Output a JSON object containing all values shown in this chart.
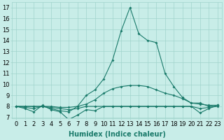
{
  "xlabel": "Humidex (Indice chaleur)",
  "ylabel": "",
  "background_color": "#c8ede8",
  "grid_color": "#a0d4cc",
  "line_color": "#1a7a6a",
  "x": [
    0,
    1,
    2,
    3,
    4,
    5,
    6,
    7,
    8,
    9,
    10,
    11,
    12,
    13,
    14,
    15,
    16,
    17,
    18,
    19,
    20,
    21,
    22,
    23
  ],
  "y_max": [
    8.0,
    7.9,
    7.8,
    8.0,
    7.8,
    7.6,
    7.5,
    8.0,
    9.0,
    9.5,
    10.5,
    12.2,
    14.9,
    17.0,
    14.6,
    14.0,
    13.8,
    11.0,
    9.8,
    8.8,
    8.3,
    8.3,
    8.0,
    8.1
  ],
  "y_upper": [
    8.0,
    8.0,
    8.0,
    8.0,
    8.0,
    7.9,
    7.9,
    8.0,
    8.2,
    8.6,
    9.2,
    9.6,
    9.8,
    9.9,
    9.9,
    9.8,
    9.5,
    9.2,
    9.0,
    8.7,
    8.3,
    8.2,
    8.1,
    8.1
  ],
  "y_lower": [
    8.0,
    8.0,
    8.0,
    8.0,
    7.9,
    7.8,
    7.7,
    7.8,
    8.0,
    8.0,
    8.0,
    8.0,
    8.0,
    8.0,
    8.0,
    8.0,
    8.0,
    8.0,
    8.0,
    8.0,
    8.0,
    7.8,
    7.9,
    8.0
  ],
  "y_min": [
    8.0,
    7.8,
    7.5,
    8.1,
    7.7,
    7.5,
    6.8,
    7.2,
    7.7,
    7.6,
    8.0,
    8.0,
    8.0,
    8.0,
    8.0,
    8.0,
    8.0,
    8.0,
    8.0,
    8.0,
    8.0,
    7.4,
    7.8,
    8.1
  ],
  "ylim": [
    6.9,
    17.5
  ],
  "xlim": [
    -0.5,
    23.5
  ],
  "yticks": [
    7,
    8,
    9,
    10,
    11,
    12,
    13,
    14,
    15,
    16,
    17
  ],
  "xticks": [
    0,
    1,
    2,
    3,
    4,
    5,
    6,
    7,
    8,
    9,
    10,
    11,
    12,
    13,
    14,
    15,
    16,
    17,
    18,
    19,
    20,
    21,
    22,
    23
  ],
  "markersize": 2.0,
  "linewidth": 0.8,
  "fontsize_label": 7,
  "fontsize_tick": 6
}
